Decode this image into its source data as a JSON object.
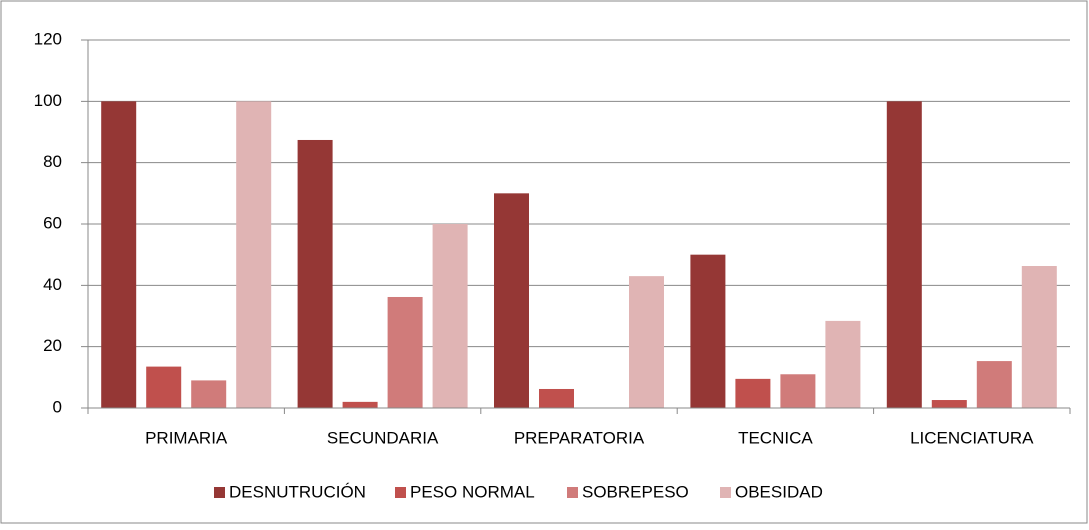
{
  "chart_data": {
    "type": "bar",
    "categories": [
      "PRIMARIA",
      "SECUNDARIA",
      "PREPARATORIA",
      "TECNICA",
      "LICENCIATURA"
    ],
    "series": [
      {
        "name": "DESNUTRUCIÓN",
        "color": "#953735",
        "values": [
          100,
          87.4,
          70,
          50,
          100
        ]
      },
      {
        "name": "PESO NORMAL",
        "color": "#c0504d",
        "values": [
          13.5,
          2,
          6.2,
          9.5,
          2.6
        ]
      },
      {
        "name": "SOBREPESO",
        "color": "#d07b7a",
        "values": [
          9,
          36.2,
          0,
          11,
          15.3
        ]
      },
      {
        "name": "OBESIDAD",
        "color": "#e0b4b4",
        "values": [
          100,
          60,
          43,
          28.4,
          46.3
        ]
      }
    ],
    "ylim": [
      0,
      120
    ],
    "yticks": [
      0,
      20,
      40,
      60,
      80,
      100,
      120
    ],
    "grid": true,
    "legend": "bottom"
  }
}
